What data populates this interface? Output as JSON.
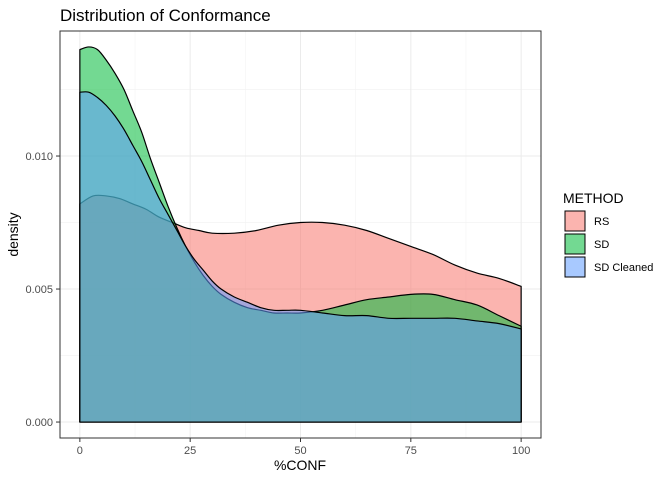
{
  "chart_data": {
    "type": "area",
    "title": "Distribution of Conformance",
    "xlabel": "%CONF",
    "ylabel": "density",
    "xlim": [
      -4.5,
      104.5
    ],
    "ylim": [
      -0.0006,
      0.0147
    ],
    "x_ticks": [
      0,
      25,
      50,
      75,
      100
    ],
    "y_ticks": [
      0.0,
      0.005,
      0.01
    ],
    "x_tick_labels": [
      "0",
      "25",
      "50",
      "75",
      "100"
    ],
    "y_tick_labels": [
      "0.000",
      "0.005",
      "0.010"
    ],
    "grid": true,
    "legend": {
      "title": "METHOD",
      "position": "right"
    },
    "series": [
      {
        "name": "RS",
        "color": "#F8766D",
        "x": [
          0,
          3,
          6,
          9,
          12,
          15,
          18,
          21,
          24,
          27,
          30,
          35,
          40,
          45,
          50,
          55,
          60,
          65,
          70,
          75,
          80,
          85,
          90,
          95,
          100
        ],
        "y": [
          0.0082,
          0.0085,
          0.0085,
          0.0084,
          0.0082,
          0.008,
          0.0077,
          0.0075,
          0.0073,
          0.0072,
          0.0071,
          0.0071,
          0.0072,
          0.0074,
          0.0075,
          0.0075,
          0.0074,
          0.0072,
          0.0069,
          0.0066,
          0.0063,
          0.0059,
          0.0056,
          0.0054,
          0.0051
        ]
      },
      {
        "name": "SD",
        "color": "#00BA38",
        "x": [
          0,
          2,
          4,
          6,
          8,
          10,
          12,
          14,
          16,
          18,
          20,
          22,
          24,
          26,
          28,
          30,
          32,
          35,
          38,
          41,
          44,
          47,
          50,
          55,
          60,
          65,
          70,
          75,
          80,
          85,
          90,
          95,
          100
        ],
        "y": [
          0.014,
          0.0141,
          0.014,
          0.0136,
          0.0131,
          0.0125,
          0.0117,
          0.0109,
          0.0099,
          0.009,
          0.0081,
          0.0073,
          0.0066,
          0.006,
          0.0055,
          0.0051,
          0.0048,
          0.0045,
          0.0043,
          0.0042,
          0.0041,
          0.0041,
          0.0041,
          0.0042,
          0.0044,
          0.0046,
          0.0047,
          0.0048,
          0.0048,
          0.0046,
          0.0044,
          0.004,
          0.0036
        ]
      },
      {
        "name": "SD Cleaned",
        "color": "#619CFF",
        "x": [
          0,
          2,
          4,
          6,
          8,
          10,
          12,
          14,
          16,
          18,
          20,
          22,
          24,
          26,
          28,
          30,
          32,
          35,
          38,
          41,
          44,
          47,
          50,
          55,
          60,
          65,
          70,
          75,
          80,
          85,
          90,
          95,
          100
        ],
        "y": [
          0.0124,
          0.0124,
          0.0122,
          0.0119,
          0.0115,
          0.011,
          0.0104,
          0.0098,
          0.0091,
          0.0084,
          0.0078,
          0.0072,
          0.0066,
          0.0061,
          0.0057,
          0.0053,
          0.005,
          0.0047,
          0.0045,
          0.0043,
          0.0042,
          0.0042,
          0.0042,
          0.0041,
          0.004,
          0.004,
          0.0039,
          0.0039,
          0.0039,
          0.0039,
          0.0038,
          0.0037,
          0.0035
        ]
      }
    ]
  }
}
